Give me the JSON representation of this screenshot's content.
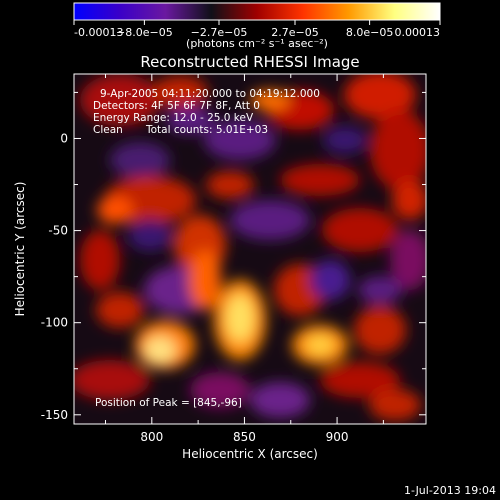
{
  "colorbar": {
    "ticks": [
      "-0.00013",
      "−8.0e−05",
      "−2.7e−05",
      "2.7e−05",
      "8.0e−05",
      "0.00013"
    ],
    "tick_values": [
      -0.00013,
      -8e-05,
      -2.7e-05,
      2.7e-05,
      8e-05,
      0.00013
    ],
    "range": [
      -0.00013,
      0.00013
    ],
    "units": "(photons cm⁻² s⁻¹ asec⁻²)",
    "colormap": [
      "#0000ff",
      "#3a00c8",
      "#6a18a0",
      "#101018",
      "#a00000",
      "#ff3300",
      "#ff9900",
      "#ffff80",
      "#ffffff"
    ]
  },
  "plot": {
    "title": "Reconstructed RHESSI Image",
    "xlabel": "Heliocentric X (arcsec)",
    "ylabel": "Heliocentric Y (arcsec)",
    "xticks": [
      800,
      850,
      900
    ],
    "yticks": [
      0,
      -50,
      -100,
      -150
    ],
    "xlim": [
      758,
      948
    ],
    "ylim": [
      -155,
      35
    ]
  },
  "annotations": {
    "time_range": "9-Apr-2005 04:11:20.000 to 04:19:12.000",
    "detectors": "Detectors: 4F 5F 6F 7F 8F, Att 0",
    "energy": "Energy Range: 12.0 - 25.0 keV",
    "method": "Clean",
    "counts": "Total counts: 5.01E+03",
    "peak": "Position of Peak = [845,-96]"
  },
  "footer": {
    "date": "1-Jul-2013 19:04"
  }
}
